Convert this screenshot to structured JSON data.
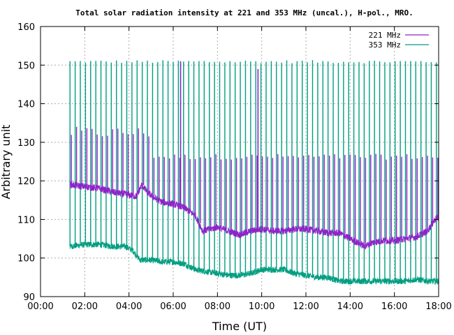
{
  "chart_data": {
    "type": "line",
    "title": "Total solar radiation intensity at 221 and 353 MHz (uncal.), H-pol., MRO.",
    "xlabel": "Time (UT)",
    "ylabel": "Arbitrary unit",
    "xlim": [
      "00:00",
      "18:00"
    ],
    "ylim": [
      90,
      160
    ],
    "x_ticks": [
      "00:00",
      "02:00",
      "04:00",
      "06:00",
      "08:00",
      "10:00",
      "12:00",
      "14:00",
      "16:00",
      "18:00"
    ],
    "y_ticks": [
      "90",
      "100",
      "110",
      "120",
      "130",
      "140",
      "150",
      "160"
    ],
    "grid": true,
    "legend_position": "top-right",
    "calibration_spikes": "periodic calibration spikes approx. every 14 minutes; 221 MHz spikes peak ~126-134, 353 MHz spikes peak ~151",
    "colors": {
      "s221": "#8e24c8",
      "s353": "#009e80"
    },
    "series": [
      {
        "name": "221 MHz",
        "x": [
          "01:20",
          "02:00",
          "02:40",
          "03:20",
          "03:50",
          "04:20",
          "04:35",
          "04:50",
          "05:10",
          "05:30",
          "06:00",
          "06:30",
          "07:00",
          "07:20",
          "07:40",
          "08:00",
          "08:30",
          "09:00",
          "09:30",
          "10:00",
          "10:30",
          "11:00",
          "11:30",
          "12:00",
          "12:30",
          "13:00",
          "13:30",
          "14:00",
          "14:20",
          "14:40",
          "15:00",
          "15:30",
          "16:00",
          "16:30",
          "17:00",
          "17:30",
          "17:50",
          "18:00"
        ],
        "y": [
          119,
          118.5,
          118,
          117,
          116.5,
          116,
          119,
          117,
          115.5,
          114.5,
          114,
          113,
          111,
          107,
          107.5,
          108,
          107,
          106,
          107,
          107.5,
          107,
          107,
          107.5,
          107.5,
          107,
          106.5,
          106.5,
          105,
          104,
          103,
          104,
          104.5,
          104.5,
          105,
          105.5,
          107,
          110,
          110.5
        ]
      },
      {
        "name": "353 MHz",
        "x": [
          "01:20",
          "02:00",
          "02:40",
          "03:20",
          "03:50",
          "04:10",
          "04:30",
          "05:00",
          "05:30",
          "06:00",
          "06:30",
          "07:00",
          "07:30",
          "08:00",
          "08:30",
          "09:00",
          "09:30",
          "10:00",
          "10:30",
          "11:00",
          "11:30",
          "12:00",
          "12:30",
          "13:00",
          "13:30",
          "14:00",
          "14:30",
          "15:00",
          "15:30",
          "16:00",
          "16:30",
          "17:00",
          "17:30",
          "18:00"
        ],
        "y": [
          103,
          103.5,
          103.5,
          103,
          103,
          102,
          99.5,
          99.5,
          99,
          99,
          98.5,
          97,
          96.5,
          96,
          95.5,
          95.5,
          96,
          97,
          97,
          97,
          96,
          95.5,
          95,
          95,
          94,
          94,
          94,
          94,
          94,
          94,
          94,
          94.5,
          94,
          94
        ]
      }
    ]
  }
}
